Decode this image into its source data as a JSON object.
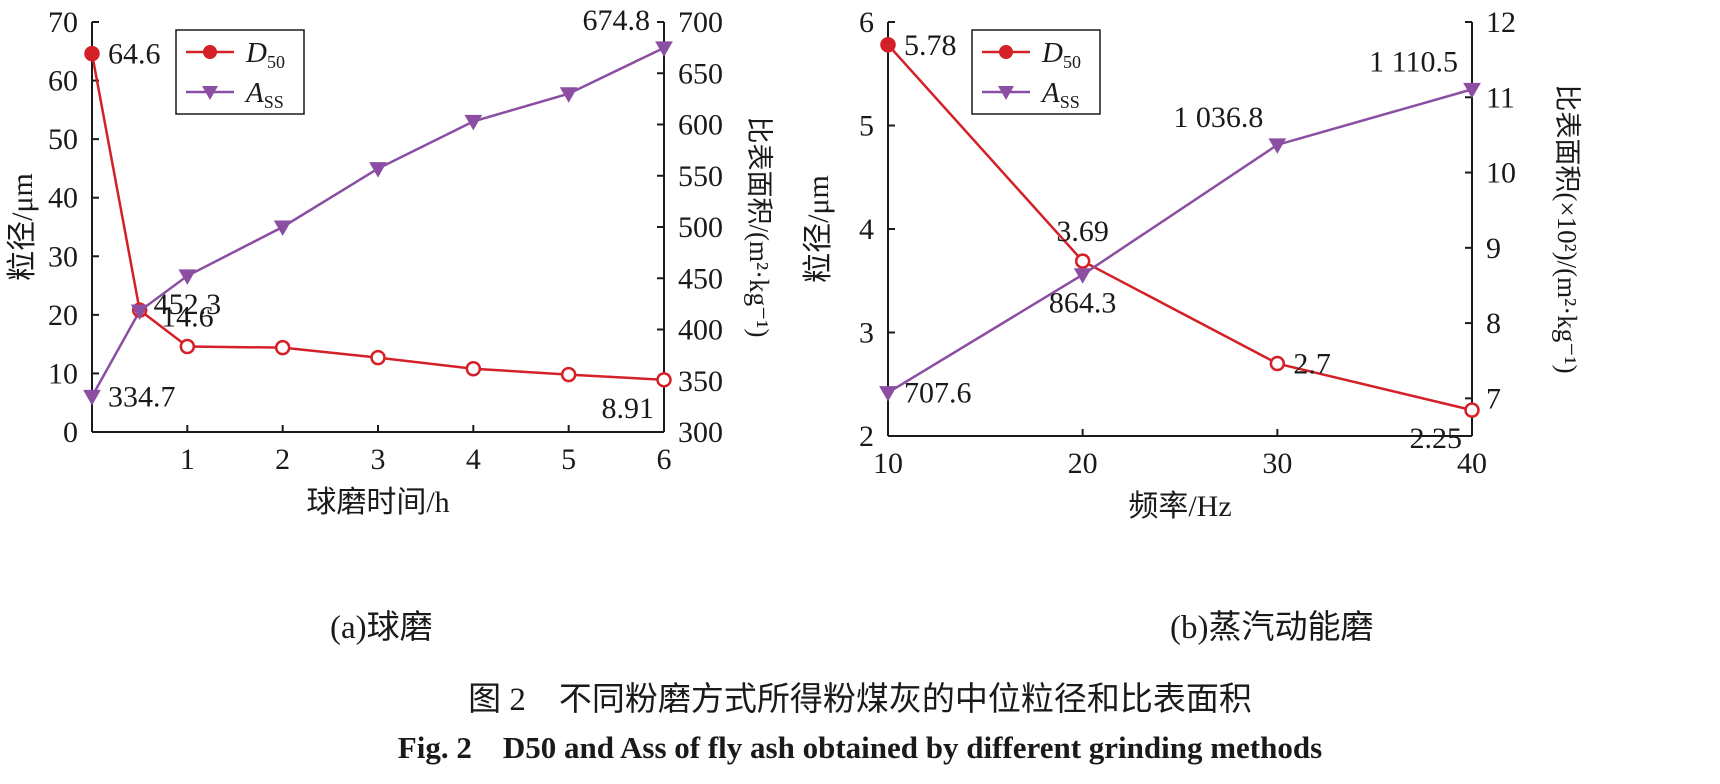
{
  "colors": {
    "d50": "#d42027",
    "ass": "#8b4ea3",
    "axis": "#1a1a1a"
  },
  "chart_data": [
    {
      "id": "a",
      "type": "line",
      "subcaption": "(a)球磨",
      "xlabel": "球磨时间/h",
      "ylabel_left": "粒径/μm",
      "ylabel_right": "比表面积/(m²·kg⁻¹)",
      "xlim": [
        0,
        6
      ],
      "ylim_left": [
        0,
        70
      ],
      "ylim_right": [
        300,
        700
      ],
      "x_ticks": [
        1,
        2,
        3,
        4,
        5,
        6
      ],
      "y_ticks_left": [
        0,
        10,
        20,
        30,
        40,
        50,
        60,
        70
      ],
      "y_ticks_right": [
        300,
        350,
        400,
        450,
        500,
        550,
        600,
        650,
        700
      ],
      "legend": {
        "placement": "top-left",
        "entries": [
          {
            "main": "D",
            "sub": "50"
          },
          {
            "main": "A",
            "sub": "SS"
          }
        ]
      },
      "series": [
        {
          "name": "D50",
          "axis": "left",
          "marker": "circle",
          "x": [
            0,
            0.5,
            1,
            2,
            3,
            4,
            5,
            6
          ],
          "y": [
            64.6,
            20.8,
            14.6,
            14.4,
            12.7,
            10.8,
            9.8,
            8.91
          ]
        },
        {
          "name": "Ass",
          "axis": "right",
          "marker": "triangle-down",
          "x": [
            0,
            0.5,
            1,
            2,
            3,
            4,
            5,
            6
          ],
          "y": [
            334.7,
            418,
            452.3,
            500,
            557,
            603,
            630,
            674.8
          ]
        }
      ],
      "annotations": [
        {
          "text": "64.6",
          "series": "D50",
          "index": 0,
          "anchor": "right"
        },
        {
          "text": "14.6",
          "series": "D50",
          "index": 2,
          "anchor": "above"
        },
        {
          "text": "8.91",
          "series": "D50",
          "index": 7,
          "anchor": "below-left"
        },
        {
          "text": "334.7",
          "series": "Ass",
          "index": 0,
          "anchor": "right"
        },
        {
          "text": "452.3",
          "series": "Ass",
          "index": 2,
          "anchor": "below"
        },
        {
          "text": "674.8",
          "series": "Ass",
          "index": 7,
          "anchor": "above-left"
        }
      ]
    },
    {
      "id": "b",
      "type": "line",
      "subcaption": "(b)蒸汽动能磨",
      "xlabel": "频率/Hz",
      "ylabel_left": "粒径/μm",
      "ylabel_right": "比表面积(×10²)/(m²·kg⁻¹)",
      "xlim": [
        10,
        40
      ],
      "ylim_left": [
        2,
        6
      ],
      "ylim_right": [
        6.5,
        12
      ],
      "x_ticks": [
        10,
        20,
        30,
        40
      ],
      "y_ticks_left": [
        2,
        3,
        4,
        5,
        6
      ],
      "y_ticks_right": [
        7,
        8,
        9,
        10,
        11,
        12
      ],
      "legend": {
        "placement": "top-left",
        "entries": [
          {
            "main": "D",
            "sub": "50"
          },
          {
            "main": "A",
            "sub": "SS"
          }
        ]
      },
      "series": [
        {
          "name": "D50",
          "axis": "left",
          "marker": "circle",
          "x": [
            10,
            20,
            30,
            40
          ],
          "y": [
            5.78,
            3.69,
            2.7,
            2.25
          ]
        },
        {
          "name": "Ass",
          "axis": "right",
          "marker": "triangle-down",
          "x": [
            10,
            20,
            30,
            40
          ],
          "y": [
            7.076,
            8.643,
            10.368,
            11.105
          ]
        }
      ],
      "annotations": [
        {
          "text": "5.78",
          "series": "D50",
          "index": 0,
          "anchor": "right"
        },
        {
          "text": "3.69",
          "series": "D50",
          "index": 1,
          "anchor": "above"
        },
        {
          "text": "2.7",
          "series": "D50",
          "index": 2,
          "anchor": "right"
        },
        {
          "text": "2.25",
          "series": "D50",
          "index": 3,
          "anchor": "below-left"
        },
        {
          "text": "707.6",
          "series": "Ass",
          "index": 0,
          "anchor": "right"
        },
        {
          "text": "864.3",
          "series": "Ass",
          "index": 1,
          "anchor": "below"
        },
        {
          "text": "1 036.8",
          "series": "Ass",
          "index": 2,
          "anchor": "above-left"
        },
        {
          "text": "1 110.5",
          "series": "Ass",
          "index": 3,
          "anchor": "above-left"
        }
      ]
    }
  ],
  "caption_cn": "图 2　不同粉磨方式所得粉煤灰的中位粒径和比表面积",
  "caption_en": "Fig. 2　D50 and Ass of fly ash obtained by different grinding methods"
}
